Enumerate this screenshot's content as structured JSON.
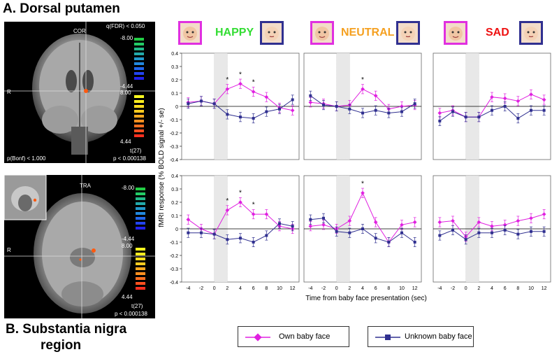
{
  "figure": {
    "panel_a_title": "A. Dorsal putamen",
    "panel_b_title_line1": "B. Substantia nigra",
    "panel_b_title_line2": "region"
  },
  "brain_a": {
    "view_label": "COR",
    "fdr_label": "q(FDR) < 0.050",
    "orient_label": "R",
    "bonf_label": "p(Bonf) < 1.000",
    "p_label": "p < 0.000138",
    "t_label": "t(27)",
    "cbar_top": "-8.00",
    "cbar_mid_neg": "-4.44",
    "cbar_mid_pos": "8.00",
    "cbar_bottom": "4.44"
  },
  "brain_b": {
    "view_label": "TRA",
    "orient_label": "R",
    "p_label": "p < 0.000138",
    "t_label": "t(27)",
    "cbar_top": "-8.00",
    "cbar_mid_neg": "-4.44",
    "cbar_mid_pos": "8.00",
    "cbar_bottom": "4.44"
  },
  "headers": [
    {
      "label": "HAPPY",
      "color": "#33dd33"
    },
    {
      "label": "NEUTRAL",
      "color": "#f5a020"
    },
    {
      "label": "SAD",
      "color": "#ee1111"
    }
  ],
  "face_frame_colors": {
    "own": "#e030e0",
    "unknown": "#303090"
  },
  "legend": {
    "own_label": "Own baby face",
    "unknown_label": "Unknown baby face",
    "own_color": "#e020e0",
    "unknown_color": "#303090"
  },
  "axis": {
    "ylabel": "fMRI response (% BOLD signal +/- se)",
    "xlabel": "Time from baby face presentation (sec)"
  },
  "chart_data": {
    "type": "line",
    "x": [
      -4,
      -2,
      0,
      2,
      4,
      6,
      8,
      10,
      12
    ],
    "xticks": [
      "-4",
      "-2",
      "0",
      "2",
      "4",
      "6",
      "8",
      "10",
      "12"
    ],
    "ylim": [
      -0.4,
      0.4
    ],
    "yticks": [
      "0.4",
      "0.3",
      "0.2",
      "0.1",
      "0",
      "-0.1",
      "-0.2",
      "-0.3",
      "-0.4"
    ],
    "stimulus_window": [
      0,
      2
    ],
    "rows": [
      {
        "region": "Dorsal putamen",
        "panels": [
          {
            "condition": "HAPPY",
            "own": [
              0.03,
              0.04,
              0.02,
              0.13,
              0.17,
              0.11,
              0.07,
              -0.01,
              -0.03
            ],
            "unknown": [
              0.02,
              0.04,
              0.02,
              -0.06,
              -0.08,
              -0.09,
              -0.04,
              -0.02,
              0.05
            ],
            "stars": [
              "",
              "",
              "",
              "*",
              "*",
              "*",
              "",
              "",
              ""
            ]
          },
          {
            "condition": "NEUTRAL",
            "own": [
              0.03,
              0.02,
              0.0,
              0.01,
              0.13,
              0.08,
              -0.02,
              0.0,
              0.01
            ],
            "unknown": [
              0.08,
              0.01,
              0.0,
              -0.02,
              -0.05,
              -0.03,
              -0.05,
              -0.04,
              0.02
            ],
            "stars": [
              "",
              "",
              "",
              "",
              "*",
              "",
              "",
              "",
              ""
            ]
          },
          {
            "condition": "SAD",
            "own": [
              -0.05,
              -0.03,
              -0.08,
              -0.08,
              0.07,
              0.06,
              0.04,
              0.09,
              0.05
            ],
            "unknown": [
              -0.11,
              -0.04,
              -0.08,
              -0.08,
              -0.03,
              0.0,
              -0.09,
              -0.03,
              -0.03
            ],
            "stars": [
              "",
              "",
              "",
              "",
              "",
              "",
              "",
              "",
              ""
            ]
          }
        ]
      },
      {
        "region": "Substantia nigra region",
        "panels": [
          {
            "condition": "HAPPY",
            "own": [
              0.07,
              0.0,
              -0.04,
              0.14,
              0.2,
              0.11,
              0.11,
              0.02,
              0.0
            ],
            "unknown": [
              -0.03,
              -0.03,
              -0.04,
              -0.08,
              -0.07,
              -0.1,
              -0.05,
              0.04,
              0.02
            ],
            "stars": [
              "",
              "",
              "",
              "*",
              "*",
              "*",
              "",
              "",
              ""
            ]
          },
          {
            "condition": "NEUTRAL",
            "own": [
              0.02,
              0.03,
              0.0,
              0.06,
              0.27,
              0.05,
              -0.1,
              0.03,
              0.05
            ],
            "unknown": [
              0.07,
              0.08,
              -0.02,
              -0.03,
              0.0,
              -0.07,
              -0.1,
              -0.03,
              -0.1
            ],
            "stars": [
              "",
              "",
              "",
              "",
              "*",
              "",
              "",
              "",
              ""
            ]
          },
          {
            "condition": "SAD",
            "own": [
              0.05,
              0.06,
              -0.06,
              0.05,
              0.02,
              0.03,
              0.06,
              0.08,
              0.11
            ],
            "unknown": [
              -0.05,
              -0.01,
              -0.08,
              -0.03,
              -0.03,
              -0.01,
              -0.04,
              -0.02,
              -0.02
            ],
            "stars": [
              "",
              "",
              "",
              "",
              "",
              "",
              "",
              "",
              ""
            ]
          }
        ]
      }
    ]
  }
}
